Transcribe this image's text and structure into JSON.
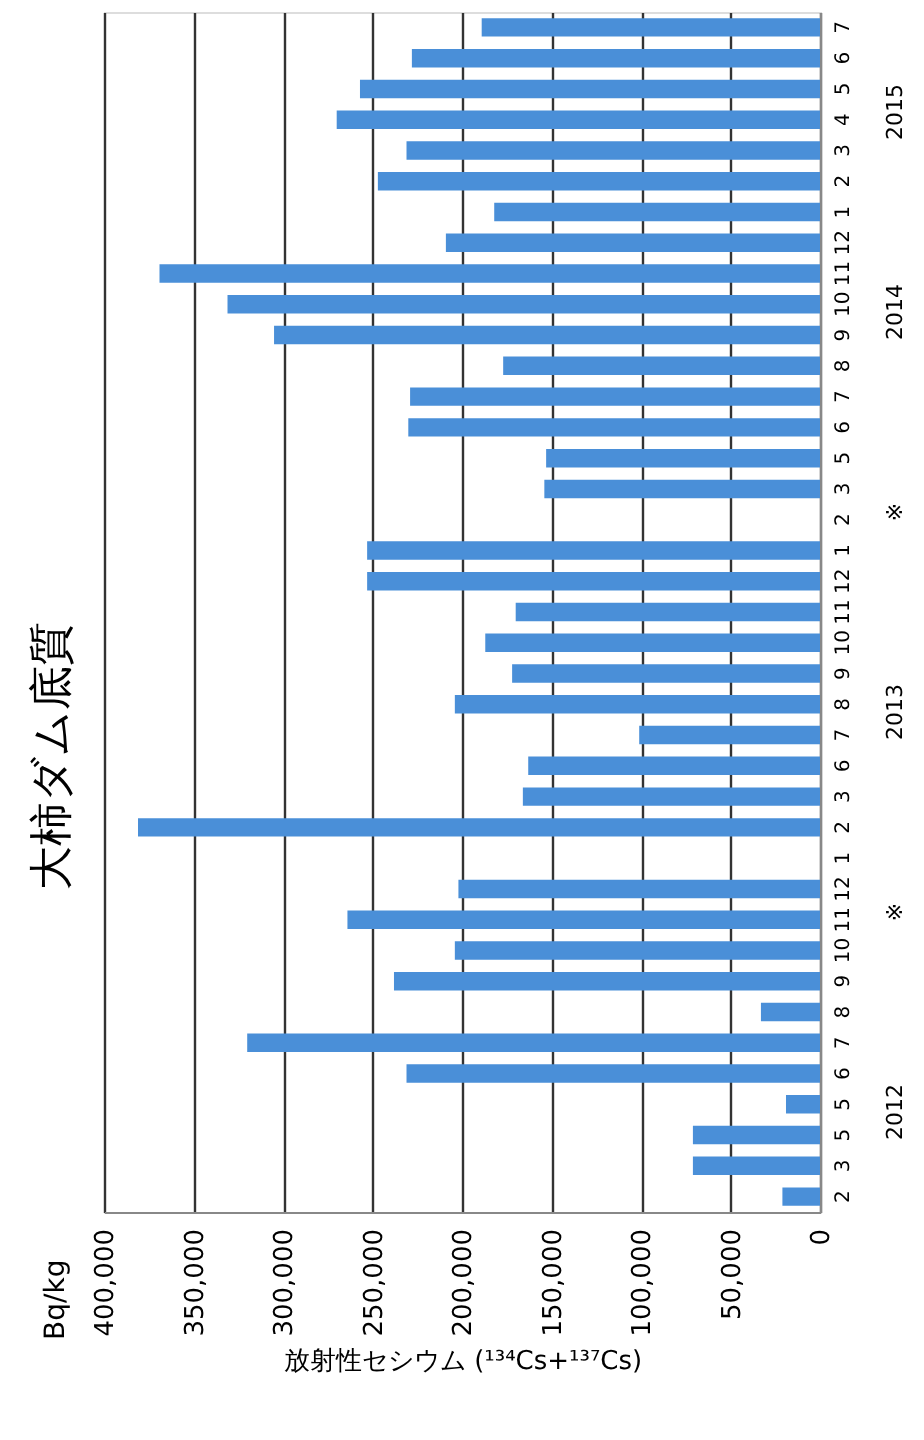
{
  "chart_data": {
    "type": "bar",
    "orientation": "horizontal",
    "title": "大柿ダム底質",
    "xlabel": "放射性セシウム (¹³⁴Cs+¹³⁷Cs)",
    "categories": [
      "7",
      "6",
      "5",
      "4",
      "3",
      "2",
      "1",
      "12",
      "11",
      "10",
      "9",
      "8",
      "7",
      "6",
      "5",
      "3",
      "2",
      "1",
      "12",
      "11",
      "10",
      "9",
      "8",
      "7",
      "6",
      "3",
      "2",
      "1",
      "12",
      "11",
      "10",
      "9",
      "8",
      "7",
      "6",
      "5",
      "5",
      "3",
      "2"
    ],
    "values": [
      189000,
      228000,
      257000,
      270000,
      231000,
      247000,
      182000,
      209000,
      369000,
      331000,
      305000,
      177000,
      229000,
      230000,
      153000,
      154000,
      null,
      253000,
      253000,
      170000,
      187000,
      172000,
      204000,
      101000,
      163000,
      166000,
      381000,
      null,
      202000,
      264000,
      204000,
      238000,
      33000,
      320000,
      231000,
      19000,
      71000,
      71000,
      21000
    ],
    "color": "#4a8fd8",
    "xlim": [
      400000,
      0
    ],
    "xticks": [
      {
        "value": 400000,
        "label": "400,000"
      },
      {
        "value": 350000,
        "label": "350,000"
      },
      {
        "value": 300000,
        "label": "300,000"
      },
      {
        "value": 250000,
        "label": "250,000"
      },
      {
        "value": 200000,
        "label": "200,000"
      },
      {
        "value": 150000,
        "label": "150,000"
      },
      {
        "value": 100000,
        "label": "100,000"
      },
      {
        "value": 50000,
        "label": "50,000"
      },
      0
    ],
    "grid": "x",
    "annotations": [
      "Bq/kg",
      "2015",
      "2014",
      "※",
      "2013",
      "※",
      "2012"
    ]
  }
}
